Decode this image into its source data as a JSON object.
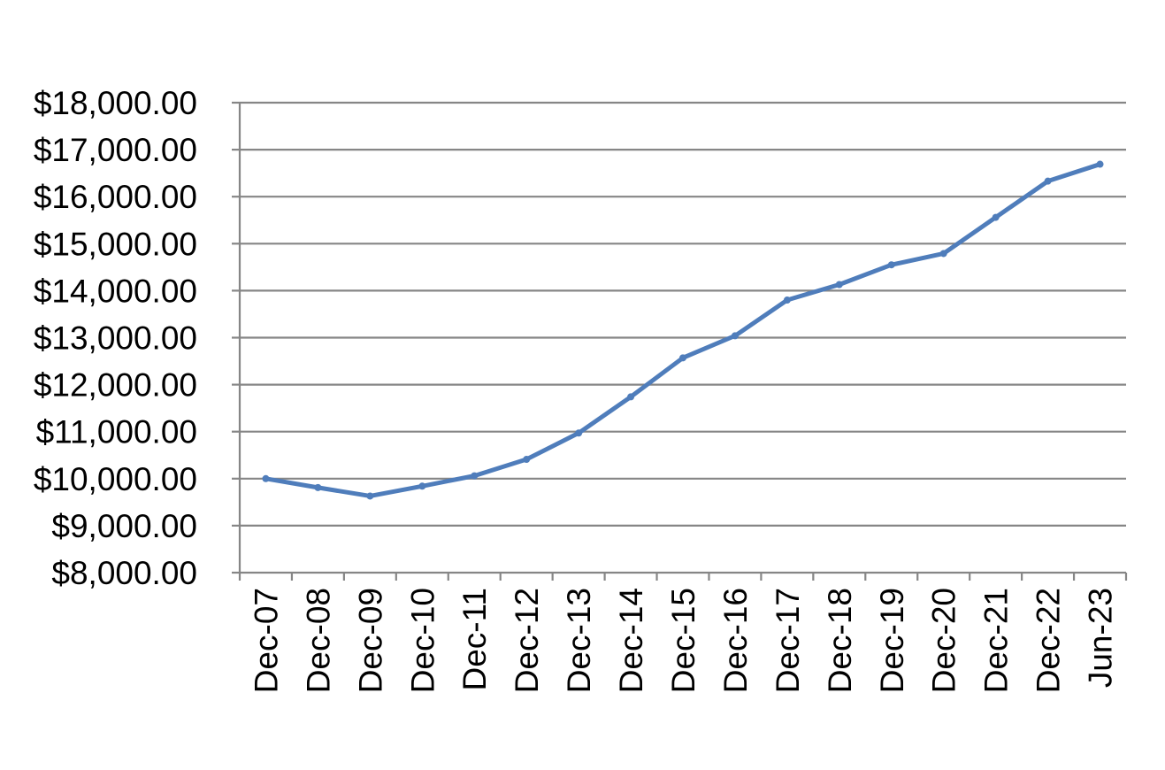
{
  "chart_data": {
    "type": "line",
    "title": "",
    "xlabel": "",
    "ylabel": "",
    "categories": [
      "Dec-07",
      "Dec-08",
      "Dec-09",
      "Dec-10",
      "Dec-11",
      "Dec-12",
      "Dec-13",
      "Dec-14",
      "Dec-15",
      "Dec-16",
      "Dec-17",
      "Dec-18",
      "Dec-19",
      "Dec-20",
      "Dec-21",
      "Dec-22",
      "Jun-23"
    ],
    "series": [
      {
        "values": [
          10000,
          9810,
          9630,
          9840,
          10060,
          10410,
          10970,
          11740,
          12570,
          13040,
          13800,
          14130,
          14550,
          14790,
          15560,
          16330,
          16690
        ]
      }
    ],
    "ylim": [
      8000,
      18000
    ],
    "yticks": [
      8000,
      9000,
      10000,
      11000,
      12000,
      13000,
      14000,
      15000,
      16000,
      17000,
      18000
    ],
    "ytick_labels": [
      "$8,000.00",
      "$9,000.00",
      "$10,000.00",
      "$11,000.00",
      "$12,000.00",
      "$13,000.00",
      "$14,000.00",
      "$15,000.00",
      "$16,000.00",
      "$17,000.00",
      "$18,000.00"
    ],
    "grid": true,
    "legend": "none",
    "colors": {
      "line": "#4f7dbb",
      "grid": "#868686"
    }
  }
}
